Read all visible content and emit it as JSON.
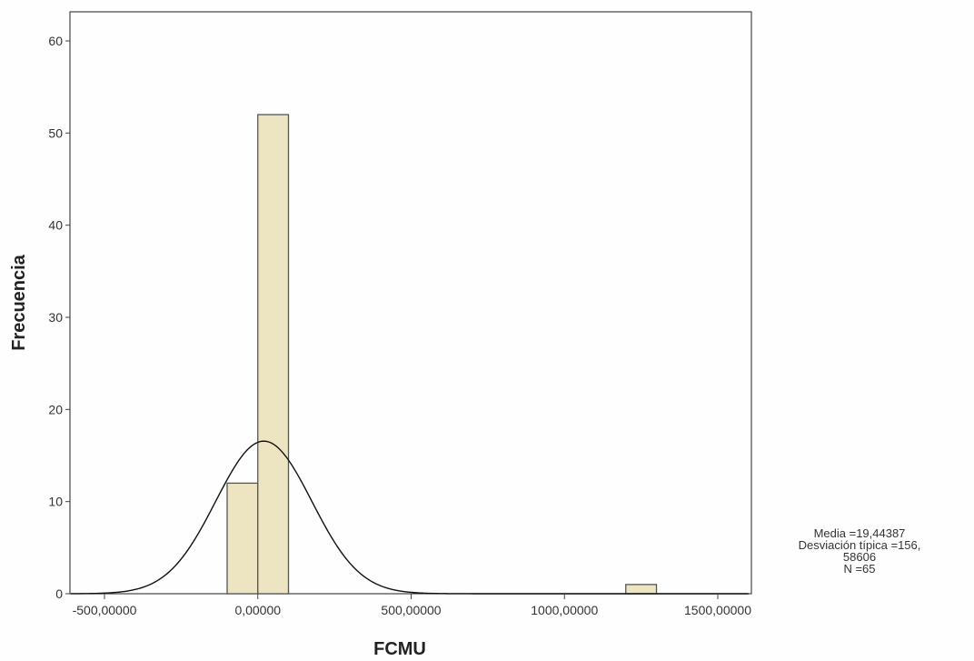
{
  "chart_data": {
    "type": "bar",
    "subtype": "histogram",
    "xlabel": "FCMU",
    "ylabel": "Frecuencia",
    "xlim": [
      -600,
      1600
    ],
    "ylim": [
      0,
      63
    ],
    "x_ticks": [
      -500,
      0,
      500,
      1000,
      1500
    ],
    "x_tick_labels": [
      "-500,00000",
      "0,00000",
      "500,00000",
      "1000,00000",
      "1500,00000"
    ],
    "y_ticks": [
      0,
      10,
      20,
      30,
      40,
      50,
      60
    ],
    "y_tick_labels": [
      "0",
      "10",
      "20",
      "30",
      "40",
      "50",
      "60"
    ],
    "bins": [
      {
        "x0": -100,
        "x1": 0,
        "value": 12
      },
      {
        "x0": 0,
        "x1": 100,
        "value": 52
      },
      {
        "x0": 1200,
        "x1": 1300,
        "value": 1
      }
    ],
    "normal_curve": {
      "mean": 19.44387,
      "sd": 156.58606,
      "n": 65,
      "bin_width": 100
    },
    "grid": false,
    "bar_color": "#ede5c2",
    "bar_stroke": "#555555",
    "curve_color": "#111111"
  },
  "stats": {
    "mean_text": "Media =19,44387",
    "sd_text_line1": "Desviación típica =156,",
    "sd_text_line2": "58606",
    "n_text": "N =65"
  }
}
